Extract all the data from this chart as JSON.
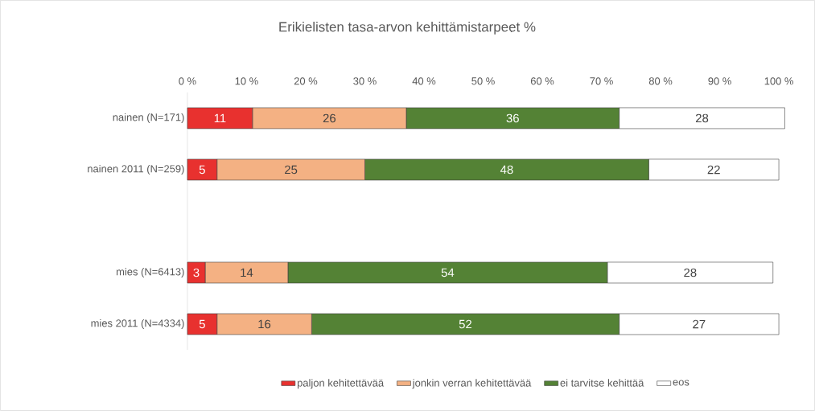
{
  "chart_data": {
    "type": "bar",
    "orientation": "horizontal",
    "stacked": true,
    "title": "Erikielisten tasa-arvon kehittämistarpeet %",
    "categories": [
      "nainen (N=171)",
      "nainen 2011 (N=259)",
      null,
      "mies (N=6413)",
      "mies 2011 (N=4334)"
    ],
    "xlim": [
      0,
      101
    ],
    "xticks": [
      {
        "value": 0,
        "label": "0 %"
      },
      {
        "value": 10,
        "label": "10 %"
      },
      {
        "value": 20,
        "label": "20 %"
      },
      {
        "value": 30,
        "label": "30 %"
      },
      {
        "value": 40,
        "label": "40 %"
      },
      {
        "value": 50,
        "label": "50 %"
      },
      {
        "value": 60,
        "label": "60 %"
      },
      {
        "value": 70,
        "label": "70 %"
      },
      {
        "value": 80,
        "label": "80 %"
      },
      {
        "value": 90,
        "label": "90 %"
      },
      {
        "value": 100,
        "label": "100 %"
      }
    ],
    "series": [
      {
        "name": "paljon kehitettävää",
        "color": "#e8312f",
        "values": [
          11,
          5,
          null,
          3,
          5
        ]
      },
      {
        "name": "jonkin verran kehitettävää",
        "color": "#f4b183",
        "values": [
          26,
          25,
          null,
          14,
          16
        ]
      },
      {
        "name": "ei tarvitse kehittää",
        "color": "#548235",
        "values": [
          36,
          48,
          null,
          54,
          52
        ]
      },
      {
        "name": "eos",
        "color": "#ffffff",
        "values": [
          28,
          22,
          null,
          28,
          27
        ]
      }
    ],
    "data_labels": true,
    "legend": "bottom"
  }
}
